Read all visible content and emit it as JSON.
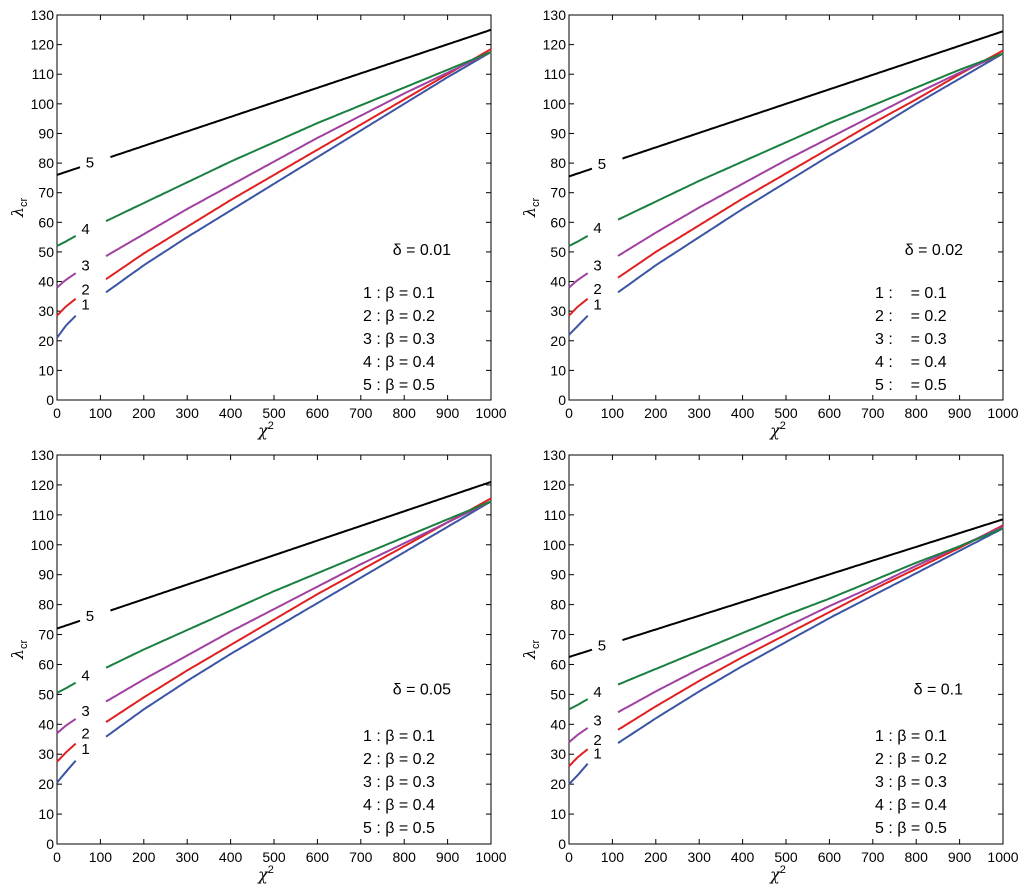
{
  "chart_data": [
    {
      "type": "line",
      "xlabel": "χ",
      "xlabel_sup": "2",
      "ylabel": "λ",
      "ylabel_sub": "cr",
      "xlim": [
        0,
        1000
      ],
      "ylim": [
        0,
        130
      ],
      "xticks": [
        0,
        100,
        200,
        300,
        400,
        500,
        600,
        700,
        800,
        900,
        1000
      ],
      "yticks": [
        0,
        10,
        20,
        30,
        40,
        50,
        60,
        70,
        80,
        90,
        100,
        110,
        120,
        130
      ],
      "grid": false,
      "annotation": "δ = 0.01",
      "legend_lines": [
        "1 : β = 0.1",
        "2 : β = 0.2",
        "3 : β = 0.3",
        "4 : β = 0.4",
        "5 : β = 0.5"
      ],
      "series": [
        {
          "label": "1",
          "color": "#3a55a4",
          "x": [
            0,
            20,
            50,
            100,
            200,
            300,
            400,
            500,
            600,
            700,
            800,
            900,
            1000
          ],
          "y": [
            21,
            25,
            29.5,
            35,
            45.5,
            55,
            64,
            73,
            82,
            91,
            100,
            109,
            117.5
          ]
        },
        {
          "label": "2",
          "color": "#e02020",
          "x": [
            0,
            20,
            50,
            100,
            200,
            300,
            400,
            500,
            600,
            700,
            800,
            900,
            1000
          ],
          "y": [
            28.5,
            31.5,
            35,
            39.5,
            49.5,
            58.5,
            67.5,
            76,
            84.5,
            93,
            101.5,
            110,
            118.5
          ]
        },
        {
          "label": "3",
          "color": "#a040a0",
          "x": [
            0,
            20,
            50,
            100,
            200,
            300,
            400,
            500,
            600,
            700,
            800,
            900,
            1000
          ],
          "y": [
            38,
            40.5,
            43.5,
            47.5,
            56,
            64.5,
            72.5,
            80.5,
            88.5,
            96,
            103.5,
            110.5,
            117.5
          ]
        },
        {
          "label": "4",
          "color": "#1a8040",
          "x": [
            0,
            20,
            50,
            100,
            200,
            300,
            400,
            500,
            600,
            700,
            800,
            900,
            1000
          ],
          "y": [
            52,
            53.5,
            56,
            59.5,
            66.5,
            73.5,
            80.5,
            87,
            93.5,
            99.5,
            105.5,
            111.5,
            117.5
          ]
        },
        {
          "label": "5",
          "color": "#000000",
          "x": [
            0,
            1000
          ],
          "y": [
            76,
            125
          ]
        }
      ]
    },
    {
      "type": "line",
      "xlabel": "χ",
      "xlabel_sup": "2",
      "ylabel": "λ",
      "ylabel_sub": "cr",
      "xlim": [
        0,
        1000
      ],
      "ylim": [
        0,
        130
      ],
      "xticks": [
        0,
        100,
        200,
        300,
        400,
        500,
        600,
        700,
        800,
        900,
        1000
      ],
      "yticks": [
        0,
        10,
        20,
        30,
        40,
        50,
        60,
        70,
        80,
        90,
        100,
        110,
        120,
        130
      ],
      "grid": false,
      "annotation": "δ = 0.02",
      "legend_lines": [
        "1 :    = 0.1",
        "2 :    = 0.2",
        "3 :    = 0.3",
        "4 :    = 0.4",
        "5 :    = 0.5"
      ],
      "series": [
        {
          "label": "1",
          "color": "#3a55a4",
          "x": [
            0,
            20,
            50,
            100,
            200,
            300,
            400,
            500,
            600,
            700,
            800,
            900,
            1000
          ],
          "y": [
            22,
            25,
            29.5,
            35,
            45.5,
            55,
            64.5,
            73.5,
            82.5,
            91,
            100,
            108.5,
            117
          ]
        },
        {
          "label": "2",
          "color": "#e02020",
          "x": [
            0,
            20,
            50,
            100,
            200,
            300,
            400,
            500,
            600,
            700,
            800,
            900,
            1000
          ],
          "y": [
            28.5,
            31.5,
            35,
            40,
            50,
            59,
            68,
            76.5,
            85,
            93.5,
            101.5,
            110,
            118
          ]
        },
        {
          "label": "3",
          "color": "#a040a0",
          "x": [
            0,
            20,
            50,
            100,
            200,
            300,
            400,
            500,
            600,
            700,
            800,
            900,
            1000
          ],
          "y": [
            38,
            40.5,
            43.5,
            47.5,
            56.5,
            65,
            73,
            81,
            88.5,
            96,
            103.5,
            110.5,
            117
          ]
        },
        {
          "label": "4",
          "color": "#1a8040",
          "x": [
            0,
            20,
            50,
            100,
            200,
            300,
            400,
            500,
            600,
            700,
            800,
            900,
            1000
          ],
          "y": [
            52,
            53.5,
            56,
            60,
            67,
            74,
            80.5,
            87,
            93.5,
            99.5,
            105.5,
            111.5,
            117
          ]
        },
        {
          "label": "5",
          "color": "#000000",
          "x": [
            0,
            1000
          ],
          "y": [
            75.5,
            124.5
          ]
        }
      ]
    },
    {
      "type": "line",
      "xlabel": "χ",
      "xlabel_sup": "2",
      "ylabel": "λ",
      "ylabel_sub": "cr",
      "xlim": [
        0,
        1000
      ],
      "ylim": [
        0,
        130
      ],
      "xticks": [
        0,
        100,
        200,
        300,
        400,
        500,
        600,
        700,
        800,
        900,
        1000
      ],
      "yticks": [
        0,
        10,
        20,
        30,
        40,
        50,
        60,
        70,
        80,
        90,
        100,
        110,
        120,
        130
      ],
      "grid": false,
      "annotation": "δ = 0.05",
      "legend_lines": [
        "1 : β = 0.1",
        "2 : β = 0.2",
        "3 : β = 0.3",
        "4 : β = 0.4",
        "5 : β = 0.5"
      ],
      "series": [
        {
          "label": "1",
          "color": "#3a55a4",
          "x": [
            0,
            20,
            50,
            100,
            200,
            300,
            400,
            500,
            600,
            700,
            800,
            900,
            1000
          ],
          "y": [
            20.5,
            24,
            29,
            34.5,
            45,
            54.5,
            63.5,
            72,
            80.5,
            89,
            97.5,
            106,
            114.5
          ]
        },
        {
          "label": "2",
          "color": "#e02020",
          "x": [
            0,
            20,
            50,
            100,
            200,
            300,
            400,
            500,
            600,
            700,
            800,
            900,
            1000
          ],
          "y": [
            27.5,
            30.5,
            34.5,
            39.5,
            49,
            58,
            66.5,
            75,
            83.5,
            91.5,
            99.5,
            107.5,
            115.5
          ]
        },
        {
          "label": "3",
          "color": "#a040a0",
          "x": [
            0,
            20,
            50,
            100,
            200,
            300,
            400,
            500,
            600,
            700,
            800,
            900,
            1000
          ],
          "y": [
            37,
            39.5,
            42.5,
            46.5,
            55,
            63,
            71,
            78.5,
            86,
            93.5,
            100.5,
            107.5,
            114.5
          ]
        },
        {
          "label": "4",
          "color": "#1a8040",
          "x": [
            0,
            20,
            50,
            100,
            200,
            300,
            400,
            500,
            600,
            700,
            800,
            900,
            1000
          ],
          "y": [
            50.5,
            52,
            54.5,
            58,
            65,
            71.5,
            78,
            84.5,
            90.5,
            96.5,
            102.5,
            108.5,
            114.5
          ]
        },
        {
          "label": "5",
          "color": "#000000",
          "x": [
            0,
            1000
          ],
          "y": [
            72,
            121
          ]
        }
      ]
    },
    {
      "type": "line",
      "xlabel": "χ",
      "xlabel_sup": "2",
      "ylabel": "λ",
      "ylabel_sub": "cr",
      "xlim": [
        0,
        1000
      ],
      "ylim": [
        0,
        130
      ],
      "xticks": [
        0,
        100,
        200,
        300,
        400,
        500,
        600,
        700,
        800,
        900,
        1000
      ],
      "yticks": [
        0,
        10,
        20,
        30,
        40,
        50,
        60,
        70,
        80,
        90,
        100,
        110,
        120,
        130
      ],
      "grid": false,
      "annotation": "δ = 0.1",
      "legend_lines": [
        "1 : β = 0.1",
        "2 : β = 0.2",
        "3 : β = 0.3",
        "4 : β = 0.4",
        "5 : β = 0.5"
      ],
      "series": [
        {
          "label": "1",
          "color": "#3a55a4",
          "x": [
            0,
            20,
            50,
            100,
            200,
            300,
            400,
            500,
            600,
            700,
            800,
            900,
            1000
          ],
          "y": [
            20,
            23,
            28,
            32.5,
            42,
            51,
            59.5,
            67.5,
            75.5,
            83,
            90.5,
            98,
            105.5
          ]
        },
        {
          "label": "2",
          "color": "#e02020",
          "x": [
            0,
            20,
            50,
            100,
            200,
            300,
            400,
            500,
            600,
            700,
            800,
            900,
            1000
          ],
          "y": [
            26,
            29,
            32.5,
            37,
            46,
            54.5,
            62.5,
            70,
            77.5,
            85,
            92,
            99,
            106.5
          ]
        },
        {
          "label": "3",
          "color": "#a040a0",
          "x": [
            0,
            20,
            50,
            100,
            200,
            300,
            400,
            500,
            600,
            700,
            800,
            900,
            1000
          ],
          "y": [
            34,
            36.5,
            39.5,
            43,
            51,
            58.5,
            65.5,
            72.5,
            79.5,
            86,
            93,
            99.5,
            106
          ]
        },
        {
          "label": "4",
          "color": "#1a8040",
          "x": [
            0,
            20,
            50,
            100,
            200,
            300,
            400,
            500,
            600,
            700,
            800,
            900,
            1000
          ],
          "y": [
            45,
            46.5,
            49,
            52.5,
            58.5,
            64.5,
            70.5,
            76.5,
            82,
            88,
            94,
            99.5,
            105.5
          ]
        },
        {
          "label": "5",
          "color": "#000000",
          "x": [
            0,
            1000
          ],
          "y": [
            62.5,
            108.5
          ]
        }
      ]
    }
  ]
}
